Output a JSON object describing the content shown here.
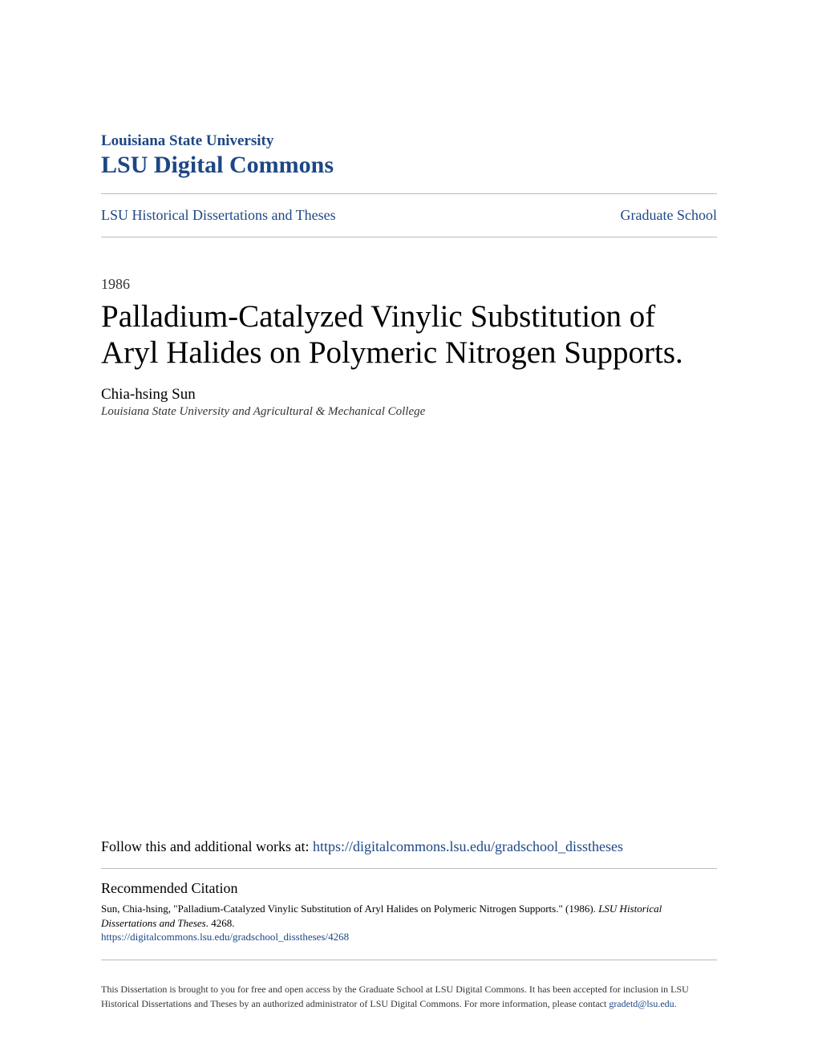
{
  "header": {
    "university": "Louisiana State University",
    "repository": "LSU Digital Commons",
    "collection_link": "LSU Historical Dissertations and Theses",
    "school_link": "Graduate School"
  },
  "paper": {
    "year": "1986",
    "title": "Palladium-Catalyzed Vinylic Substitution of Aryl Halides on Polymeric Nitrogen Supports.",
    "author": "Chia-hsing Sun",
    "affiliation": "Louisiana State University and Agricultural & Mechanical College"
  },
  "follow": {
    "prefix": "Follow this and additional works at: ",
    "url": "https://digitalcommons.lsu.edu/gradschool_disstheses"
  },
  "citation": {
    "heading": "Recommended Citation",
    "text_part1": "Sun, Chia-hsing, \"Palladium-Catalyzed Vinylic Substitution of Aryl Halides on Polymeric Nitrogen Supports.\" (1986). ",
    "text_italic": "LSU Historical Dissertations and Theses",
    "text_part2": ". 4268.",
    "url": "https://digitalcommons.lsu.edu/gradschool_disstheses/4268"
  },
  "footer": {
    "text": "This Dissertation is brought to you for free and open access by the Graduate School at LSU Digital Commons. It has been accepted for inclusion in LSU Historical Dissertations and Theses by an authorized administrator of LSU Digital Commons. For more information, please contact ",
    "email": "gradetd@lsu.edu",
    "suffix": "."
  },
  "colors": {
    "link_color": "#1d4785",
    "text_color": "#000000",
    "muted_text": "#333333",
    "divider": "#bbbbbb",
    "background": "#ffffff"
  }
}
